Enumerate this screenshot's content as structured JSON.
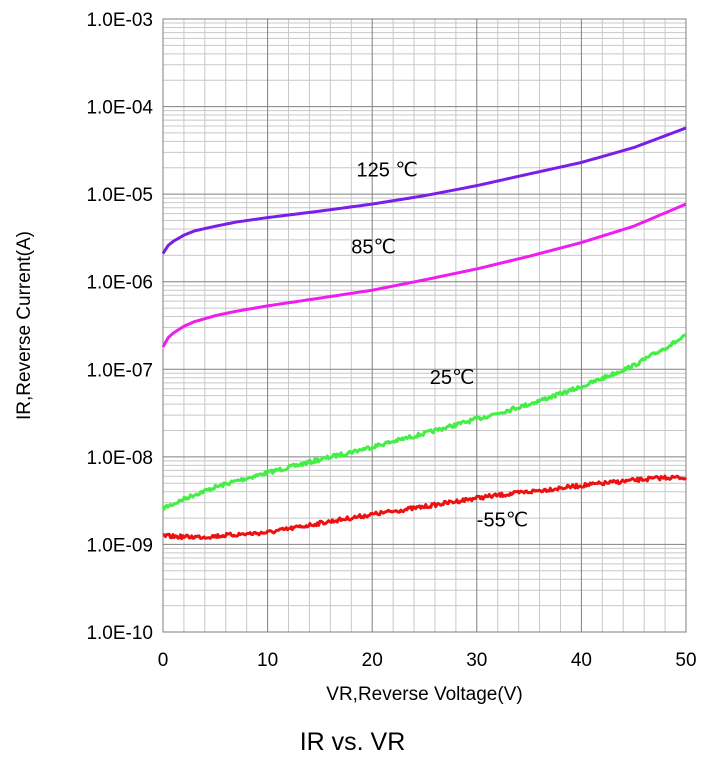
{
  "chart_data": {
    "type": "line",
    "caption": "IR vs. VR",
    "xlabel": "VR,Reverse Voltage(V)",
    "ylabel": "IR,Reverse Current(A)",
    "xlim": [
      0,
      50
    ],
    "ylim": [
      1e-10,
      0.001
    ],
    "yscale": "log",
    "xticks": [
      0,
      10,
      20,
      30,
      40,
      50
    ],
    "xtick_labels": [
      "0",
      "10",
      "20",
      "30",
      "40",
      "50"
    ],
    "yticks": [
      1e-10,
      1e-09,
      1e-08,
      1e-07,
      1e-06,
      1e-05,
      0.0001,
      0.001
    ],
    "ytick_labels": [
      "1.0E-10",
      "1.0E-09",
      "1.0E-08",
      "1.0E-07",
      "1.0E-06",
      "1.0E-05",
      "1.0E-04",
      "1.0E-03"
    ],
    "grid": true,
    "legend": "none",
    "series": [
      {
        "name": "125 ℃",
        "color": "#7a1ee8",
        "noisy": false,
        "x": [
          0,
          0.5,
          1,
          2,
          3,
          5,
          7,
          10,
          15,
          20,
          25,
          30,
          35,
          40,
          45,
          50
        ],
        "y": [
          2.1e-06,
          2.6e-06,
          2.9e-06,
          3.4e-06,
          3.8e-06,
          4.3e-06,
          4.8e-06,
          5.4e-06,
          6.4e-06,
          7.7e-06,
          9.6e-06,
          1.25e-05,
          1.7e-05,
          2.3e-05,
          3.4e-05,
          5.7e-05
        ]
      },
      {
        "name": "85℃",
        "color": "#ee1eee",
        "noisy": false,
        "x": [
          0,
          0.5,
          1,
          2,
          3,
          5,
          7,
          10,
          15,
          20,
          25,
          30,
          35,
          40,
          45,
          50
        ],
        "y": [
          1.8e-07,
          2.3e-07,
          2.6e-07,
          3.1e-07,
          3.5e-07,
          4.1e-07,
          4.6e-07,
          5.3e-07,
          6.5e-07,
          8e-07,
          1.05e-06,
          1.4e-06,
          1.95e-06,
          2.8e-06,
          4.3e-06,
          7.7e-06
        ]
      },
      {
        "name": "25℃",
        "color": "#44ee44",
        "noisy": true,
        "x": [
          0,
          1,
          2,
          3,
          5,
          7,
          10,
          15,
          20,
          25,
          30,
          35,
          40,
          45,
          50
        ],
        "y": [
          2.6e-09,
          2.9e-09,
          3.3e-09,
          3.7e-09,
          4.5e-09,
          5.3e-09,
          6.6e-09,
          9.3e-09,
          1.3e-08,
          1.85e-08,
          2.7e-08,
          4e-08,
          6.3e-08,
          1.1e-07,
          2.4e-07
        ]
      },
      {
        "name": "-55℃",
        "color": "#ee1111",
        "noisy": true,
        "x": [
          0,
          2,
          4,
          6,
          8,
          10,
          12,
          15,
          20,
          25,
          30,
          35,
          40,
          45,
          48,
          50
        ],
        "y": [
          1.25e-09,
          1.22e-09,
          1.22e-09,
          1.27e-09,
          1.32e-09,
          1.37e-09,
          1.5e-09,
          1.75e-09,
          2.2e-09,
          2.7e-09,
          3.4e-09,
          4e-09,
          4.7e-09,
          5.4e-09,
          5.8e-09,
          5.8e-09
        ]
      }
    ],
    "annotations": [
      {
        "text": "125 ℃",
        "series": 0,
        "x": 18.5,
        "y": 1.6e-05
      },
      {
        "text": "85℃",
        "series": 1,
        "x": 18,
        "y": 2.1e-06
      },
      {
        "text": "25℃",
        "series": 2,
        "x": 25.5,
        "y": 6.8e-08
      },
      {
        "text": "-55℃",
        "series": 3,
        "x": 30,
        "y": 1.6e-09
      }
    ]
  }
}
